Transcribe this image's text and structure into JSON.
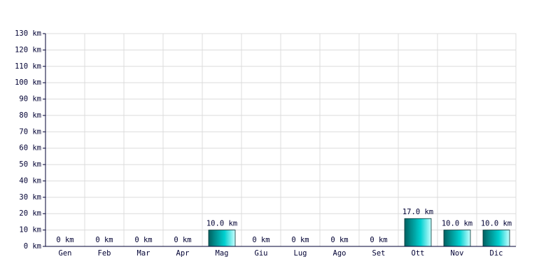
{
  "chart_data": {
    "type": "bar",
    "categories": [
      "Gen",
      "Feb",
      "Mar",
      "Apr",
      "Mag",
      "Giu",
      "Lug",
      "Ago",
      "Set",
      "Ott",
      "Nov",
      "Dic"
    ],
    "values": [
      0,
      0,
      0,
      0,
      10.0,
      0,
      0,
      0,
      0,
      17.0,
      10.0,
      10.0
    ],
    "value_labels": [
      "0 km",
      "0 km",
      "0 km",
      "0 km",
      "10.0 km",
      "0 km",
      "0 km",
      "0 km",
      "0 km",
      "17.0 km",
      "10.0 km",
      "10.0 km"
    ],
    "color": "#00d0d0",
    "ylim": [
      0,
      130
    ],
    "yticks": [
      {
        "value": 0,
        "label": "0 km"
      },
      {
        "value": 10,
        "label": "10 km"
      },
      {
        "value": 20,
        "label": "20 km"
      },
      {
        "value": 30,
        "label": "30 km"
      },
      {
        "value": 40,
        "label": "40 km"
      },
      {
        "value": 50,
        "label": "50 km"
      },
      {
        "value": 60,
        "label": "60 km"
      },
      {
        "value": 70,
        "label": "70 km"
      },
      {
        "value": 80,
        "label": "80 km"
      },
      {
        "value": 90,
        "label": "90 km"
      },
      {
        "value": 100,
        "label": "100 km"
      },
      {
        "value": 110,
        "label": "110 km"
      },
      {
        "value": 120,
        "label": "120 km"
      },
      {
        "value": 130,
        "label": "130 km"
      }
    ],
    "grid": true
  }
}
